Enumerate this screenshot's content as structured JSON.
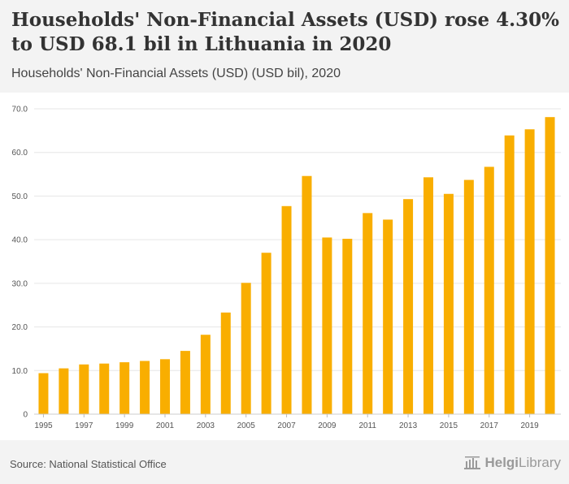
{
  "header": {
    "title": "Households' Non-Financial Assets (USD) rose 4.30% to USD 68.1 bil in Lithuania in 2020",
    "subtitle": "Households' Non-Financial Assets (USD) (USD bil), 2020"
  },
  "footer": {
    "source": "Source: National Statistical Office",
    "logo_text_bold": "Helgi",
    "logo_text_rest": "Library"
  },
  "colors": {
    "bar": "#f9ae00",
    "grid": "#e6e6e6",
    "axis_text": "#555555"
  },
  "chart_data": {
    "type": "bar",
    "title": "Households' Non-Financial Assets (USD) (USD bil), 2020",
    "xlabel": "",
    "ylabel": "",
    "categories": [
      "1995",
      "1996",
      "1997",
      "1998",
      "1999",
      "2000",
      "2001",
      "2002",
      "2003",
      "2004",
      "2005",
      "2006",
      "2007",
      "2008",
      "2009",
      "2010",
      "2011",
      "2012",
      "2013",
      "2014",
      "2015",
      "2016",
      "2017",
      "2018",
      "2019",
      "2020"
    ],
    "values": [
      9.4,
      10.5,
      11.4,
      11.6,
      11.9,
      12.2,
      12.6,
      14.5,
      18.2,
      23.3,
      30.1,
      37.0,
      47.7,
      54.6,
      40.5,
      40.2,
      46.1,
      44.6,
      49.3,
      54.3,
      50.5,
      53.7,
      56.7,
      63.9,
      65.3,
      68.1
    ],
    "x_tick_labels": [
      "1995",
      "1997",
      "1999",
      "2001",
      "2003",
      "2005",
      "2007",
      "2009",
      "2011",
      "2013",
      "2015",
      "2017",
      "2019"
    ],
    "y_tick_labels": [
      "0",
      "10.0",
      "20.0",
      "30.0",
      "40.0",
      "50.0",
      "60.0",
      "70.0"
    ],
    "y_ticks": [
      0,
      10,
      20,
      30,
      40,
      50,
      60,
      70
    ],
    "ylim": [
      0,
      70
    ],
    "grid": true,
    "legend": "none"
  }
}
